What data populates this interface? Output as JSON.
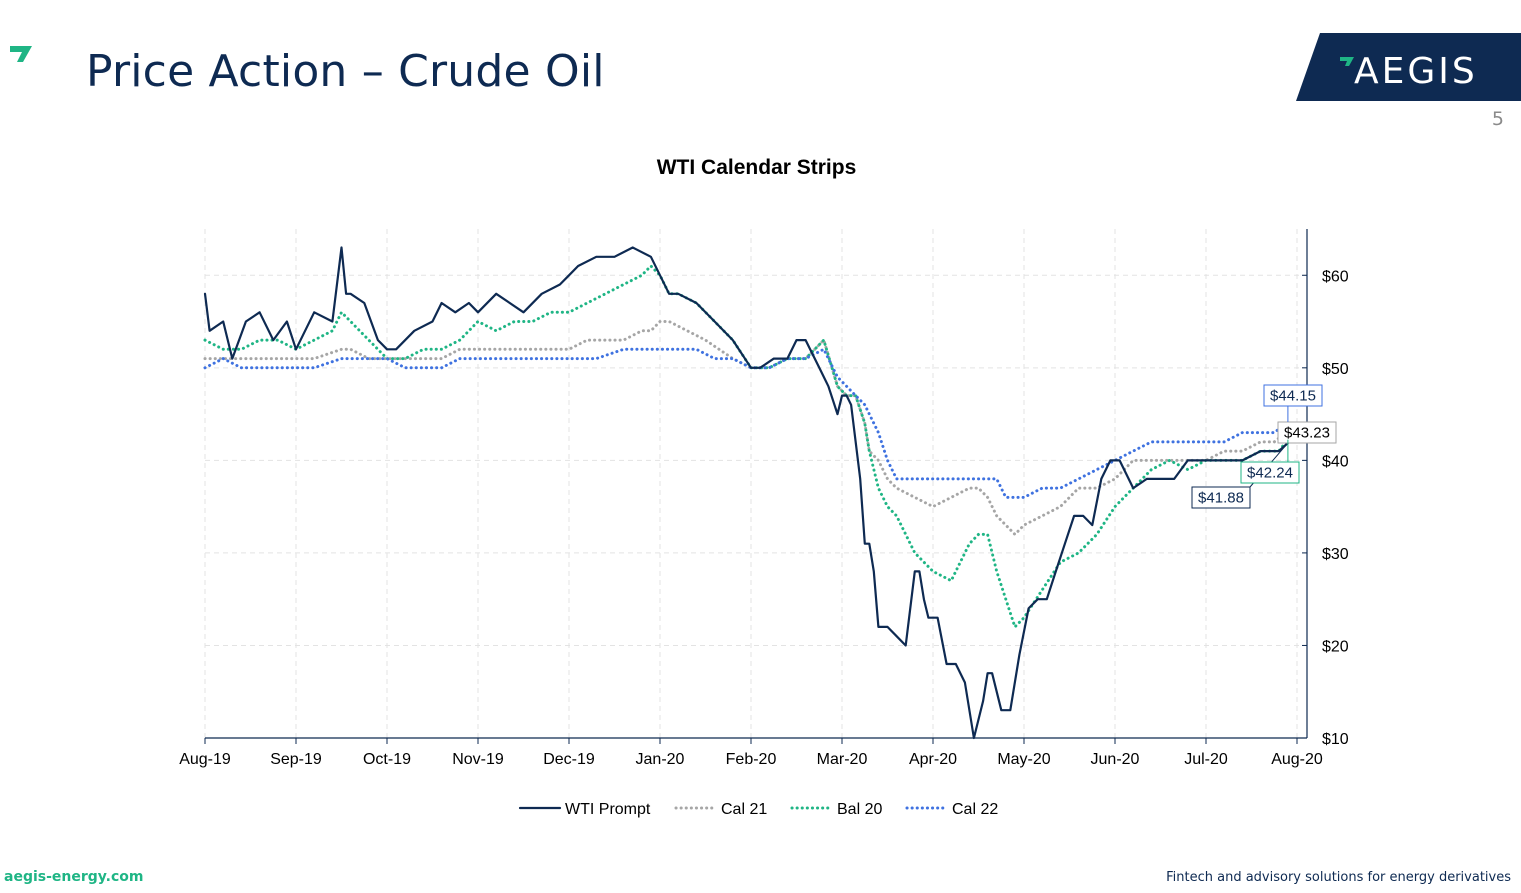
{
  "slide": {
    "title": "Price Action – Crude Oil",
    "page_number": "5",
    "logo_text": "AEGIS",
    "footer_left": "aegis-energy.com",
    "footer_right": "Fintech and advisory solutions for energy derivatives",
    "colors": {
      "navy": "#0e2a52",
      "teal": "#1fb585",
      "grey": "#a6a6a6",
      "blue": "#3f72e0"
    }
  },
  "chart_data": {
    "type": "line",
    "title": "WTI Calendar Strips",
    "x_ticks": [
      "Aug-19",
      "Sep-19",
      "Oct-19",
      "Nov-19",
      "Dec-19",
      "Jan-20",
      "Feb-20",
      "Mar-20",
      "Apr-20",
      "May-20",
      "Jun-20",
      "Jul-20",
      "Aug-20"
    ],
    "y_ticks": [
      "$10",
      "$20",
      "$30",
      "$40",
      "$50",
      "$60"
    ],
    "ylim": [
      10,
      65
    ],
    "xlim_months": [
      0,
      12
    ],
    "grid": true,
    "y_axis_side": "right",
    "legend_position": "bottom",
    "series": [
      {
        "name": "WTI Prompt",
        "style": "solid",
        "color": "#0e2a52",
        "last_label": "$41.88",
        "x": [
          0,
          0.05,
          0.2,
          0.3,
          0.45,
          0.6,
          0.75,
          0.9,
          1.0,
          1.2,
          1.4,
          1.5,
          1.55,
          1.6,
          1.75,
          1.9,
          2.0,
          2.1,
          2.3,
          2.5,
          2.6,
          2.75,
          2.9,
          3.0,
          3.2,
          3.5,
          3.7,
          3.9,
          4.0,
          4.1,
          4.3,
          4.5,
          4.7,
          4.9,
          5.0,
          5.1,
          5.2,
          5.4,
          5.6,
          5.8,
          6.0,
          6.1,
          6.25,
          6.4,
          6.5,
          6.6,
          6.75,
          6.85,
          6.95,
          7.0,
          7.05,
          7.1,
          7.2,
          7.25,
          7.3,
          7.35,
          7.4,
          7.5,
          7.6,
          7.7,
          7.8,
          7.85,
          7.9,
          7.95,
          8.05,
          8.15,
          8.25,
          8.35,
          8.45,
          8.55,
          8.6,
          8.65,
          8.75,
          8.85,
          8.95,
          9.05,
          9.15,
          9.25,
          9.35,
          9.45,
          9.55,
          9.65,
          9.75,
          9.85,
          9.95,
          10.05,
          10.2,
          10.35,
          10.5,
          10.65,
          10.8,
          11.0,
          11.2,
          11.4,
          11.6,
          11.8,
          11.9
        ],
        "y": [
          58,
          54,
          55,
          51,
          55,
          56,
          53,
          55,
          52,
          56,
          55,
          63,
          58,
          58,
          57,
          53,
          52,
          52,
          54,
          55,
          57,
          56,
          57,
          56,
          58,
          56,
          58,
          59,
          60,
          61,
          62,
          62,
          63,
          62,
          60,
          58,
          58,
          57,
          55,
          53,
          50,
          50,
          51,
          51,
          53,
          53,
          50,
          48,
          45,
          47,
          47,
          46,
          38,
          31,
          31,
          28,
          22,
          22,
          21,
          20,
          28,
          28,
          25,
          23,
          23,
          18,
          18,
          16,
          10,
          14,
          17,
          17,
          13,
          13,
          19,
          24,
          25,
          25,
          28,
          31,
          34,
          34,
          33,
          38,
          40,
          40,
          37,
          38,
          38,
          38,
          40,
          40,
          40,
          40,
          41,
          41,
          41.88
        ]
      },
      {
        "name": "Cal 21",
        "style": "dotted",
        "color": "#a6a6a6",
        "last_label": "$43.23",
        "x": [
          0,
          0.2,
          0.4,
          0.6,
          0.8,
          1.0,
          1.2,
          1.5,
          1.6,
          1.8,
          2.0,
          2.2,
          2.4,
          2.6,
          2.8,
          3.0,
          3.2,
          3.5,
          3.8,
          4.0,
          4.2,
          4.4,
          4.6,
          4.8,
          4.9,
          5.0,
          5.1,
          5.3,
          5.5,
          5.8,
          6.0,
          6.2,
          6.4,
          6.6,
          6.8,
          6.95,
          7.05,
          7.15,
          7.25,
          7.3,
          7.4,
          7.5,
          7.6,
          7.8,
          8.0,
          8.2,
          8.4,
          8.5,
          8.6,
          8.7,
          8.8,
          8.9,
          9.0,
          9.2,
          9.4,
          9.6,
          9.8,
          10.0,
          10.2,
          10.4,
          10.6,
          10.8,
          11.0,
          11.2,
          11.4,
          11.6,
          11.75,
          11.9
        ],
        "y": [
          51,
          51,
          51,
          51,
          51,
          51,
          51,
          52,
          52,
          51,
          51,
          51,
          51,
          51,
          52,
          52,
          52,
          52,
          52,
          52,
          53,
          53,
          53,
          54,
          54,
          55,
          55,
          54,
          53,
          51,
          50,
          50,
          51,
          51,
          53,
          48,
          47,
          47,
          44,
          41,
          40,
          38,
          37,
          36,
          35,
          36,
          37,
          37,
          36,
          34,
          33,
          32,
          33,
          34,
          35,
          37,
          37,
          38,
          40,
          40,
          40,
          40,
          40,
          41,
          41,
          42,
          42,
          43.23
        ]
      },
      {
        "name": "Bal 20",
        "style": "dotted",
        "color": "#1fb585",
        "last_label": "$42.24",
        "x": [
          0,
          0.2,
          0.4,
          0.6,
          0.8,
          1.0,
          1.2,
          1.4,
          1.5,
          1.6,
          1.8,
          2.0,
          2.2,
          2.4,
          2.6,
          2.8,
          3.0,
          3.2,
          3.4,
          3.6,
          3.8,
          4.0,
          4.2,
          4.4,
          4.6,
          4.8,
          4.9,
          5.0,
          5.1,
          5.2,
          5.4,
          5.6,
          5.8,
          6.0,
          6.2,
          6.4,
          6.6,
          6.8,
          6.95,
          7.05,
          7.15,
          7.25,
          7.3,
          7.4,
          7.5,
          7.6,
          7.8,
          8.0,
          8.2,
          8.4,
          8.5,
          8.6,
          8.7,
          8.8,
          8.9,
          9.0,
          9.2,
          9.4,
          9.6,
          9.8,
          10.0,
          10.2,
          10.4,
          10.6,
          10.8,
          11.0,
          11.2,
          11.4,
          11.6,
          11.8,
          11.9
        ],
        "y": [
          53,
          52,
          52,
          53,
          53,
          52,
          53,
          54,
          56,
          55,
          53,
          51,
          51,
          52,
          52,
          53,
          55,
          54,
          55,
          55,
          56,
          56,
          57,
          58,
          59,
          60,
          61,
          60,
          58,
          58,
          57,
          55,
          53,
          50,
          50,
          51,
          51,
          53,
          48,
          47,
          47,
          44,
          41,
          37,
          35,
          34,
          30,
          28,
          27,
          31,
          32,
          32,
          28,
          25,
          22,
          23,
          26,
          29,
          30,
          32,
          35,
          37,
          39,
          40,
          39,
          40,
          40,
          40,
          41,
          41,
          42.24
        ]
      },
      {
        "name": "Cal 22",
        "style": "dotted",
        "color": "#3f72e0",
        "last_label": "$44.15",
        "x": [
          0,
          0.2,
          0.4,
          0.6,
          0.8,
          1.0,
          1.2,
          1.5,
          1.8,
          2.0,
          2.2,
          2.4,
          2.6,
          2.8,
          3.0,
          3.3,
          3.6,
          4.0,
          4.3,
          4.6,
          4.8,
          4.9,
          5.0,
          5.2,
          5.4,
          5.6,
          5.8,
          6.0,
          6.2,
          6.4,
          6.6,
          6.8,
          6.95,
          7.05,
          7.15,
          7.25,
          7.3,
          7.4,
          7.5,
          7.6,
          7.8,
          8.0,
          8.2,
          8.4,
          8.5,
          8.6,
          8.7,
          8.8,
          8.9,
          9.0,
          9.2,
          9.4,
          9.6,
          9.8,
          10.0,
          10.2,
          10.4,
          10.6,
          10.8,
          11.0,
          11.2,
          11.4,
          11.6,
          11.75,
          11.9
        ],
        "y": [
          50,
          51,
          50,
          50,
          50,
          50,
          50,
          51,
          51,
          51,
          50,
          50,
          50,
          51,
          51,
          51,
          51,
          51,
          51,
          52,
          52,
          52,
          52,
          52,
          52,
          51,
          51,
          50,
          50,
          51,
          51,
          52,
          49,
          48,
          47,
          46,
          45,
          43,
          40,
          38,
          38,
          38,
          38,
          38,
          38,
          38,
          38,
          36,
          36,
          36,
          37,
          37,
          38,
          39,
          40,
          41,
          42,
          42,
          42,
          42,
          42,
          43,
          43,
          43,
          44.15
        ]
      }
    ],
    "legend": [
      "WTI Prompt",
      "Cal 21",
      "Bal 20",
      "Cal 22"
    ]
  }
}
